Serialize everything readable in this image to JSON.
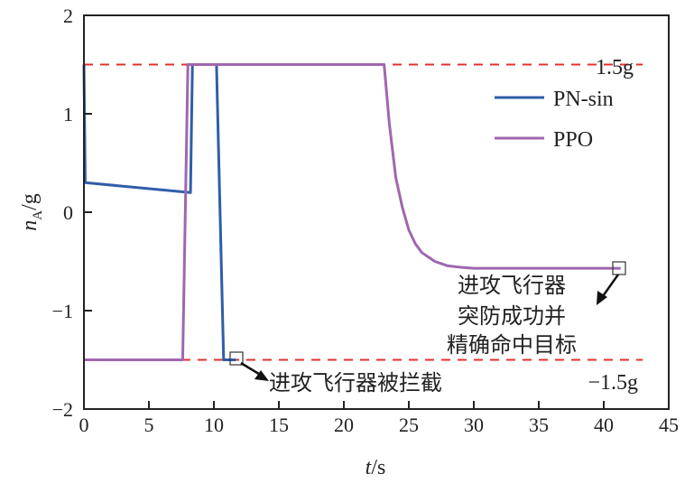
{
  "chart_data": {
    "type": "line",
    "xlabel": "t/s",
    "ylabel": "nA/g",
    "ylabel_main": "n",
    "ylabel_sub": "A",
    "ylabel_tail": "/g",
    "xlabel_main": "t",
    "xlabel_tail": "/s",
    "xlim": [
      0,
      45
    ],
    "ylim": [
      -2,
      2
    ],
    "xticks": [
      0,
      5,
      10,
      15,
      20,
      25,
      30,
      35,
      40,
      45
    ],
    "yticks": [
      2,
      1,
      0,
      -1,
      -2
    ],
    "ytick_labels": [
      "2",
      "1",
      "0",
      "−1",
      "−2"
    ],
    "grid": false,
    "legend_position": "top-right",
    "series": [
      {
        "name": "PN-sin",
        "color": "#2f5ea8",
        "points": [
          [
            0,
            1.5
          ],
          [
            0.1,
            0.3
          ],
          [
            8.2,
            0.2
          ],
          [
            8.35,
            1.5
          ],
          [
            10.2,
            1.5
          ],
          [
            10.75,
            -1.5
          ],
          [
            11.7,
            -1.5
          ]
        ]
      },
      {
        "name": "PPO",
        "color": "#a066b0",
        "points_desc": "step -1.5 to 1.5 near t=7.8, hold 1.5 until t=23.1, exponential decay to -0.57 by ~t=29, hold until 41.3",
        "points": [
          [
            0,
            -1.5
          ],
          [
            7.6,
            -1.5
          ],
          [
            8.0,
            1.5
          ],
          [
            23.1,
            1.5
          ],
          [
            23.5,
            0.9
          ],
          [
            24,
            0.35
          ],
          [
            24.5,
            0.05
          ],
          [
            25,
            -0.18
          ],
          [
            25.5,
            -0.32
          ],
          [
            26,
            -0.41
          ],
          [
            27,
            -0.5
          ],
          [
            28,
            -0.545
          ],
          [
            29,
            -0.56
          ],
          [
            30,
            -0.57
          ],
          [
            41.3,
            -0.57
          ]
        ]
      }
    ],
    "reference_lines": [
      {
        "y": 1.5,
        "label": "1.5g",
        "color": "#e03030"
      },
      {
        "y": -1.5,
        "label": "−1.5g",
        "color": "#e03030"
      }
    ],
    "annotations": [
      {
        "text": "进攻飞行器被拦截",
        "at": [
          11.9,
          -1.5
        ]
      },
      {
        "lines": [
          "进攻飞行器",
          "突防成功并",
          "精确命中目标"
        ],
        "at": [
          41.3,
          -0.57
        ]
      }
    ]
  }
}
